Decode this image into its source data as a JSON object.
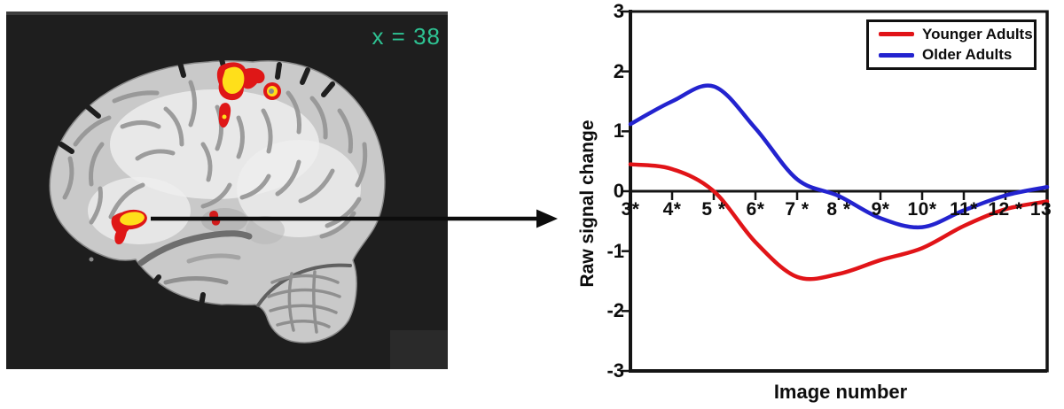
{
  "figure": {
    "background": "#ffffff"
  },
  "brain_panel": {
    "slice_label": "x = 38",
    "slice_label_color": "#2ec393",
    "background": "#1e1e1e",
    "activation": {
      "hot_color": "#df1717",
      "core_color": "#ffdf1a"
    }
  },
  "chart_data": {
    "type": "line",
    "title": "",
    "xlabel": "Image number",
    "ylabel": "Raw signal change",
    "x": [
      3,
      4,
      5,
      6,
      7,
      8,
      9,
      10,
      11,
      12,
      13
    ],
    "x_tick_labels": [
      "3*",
      "4*",
      "5 *",
      "6*",
      "7 *",
      "8 *",
      "9*",
      "10*",
      "11*",
      "12 *",
      "13"
    ],
    "y_ticks": [
      3,
      2,
      1,
      0,
      -1,
      -2,
      -3
    ],
    "ylim": [
      -3,
      3
    ],
    "xlim": [
      3,
      13
    ],
    "grid": false,
    "legend_position": "top-right",
    "series": [
      {
        "name": "Younger Adults",
        "color": "#e11418",
        "values": [
          0.45,
          0.37,
          0.0,
          -0.85,
          -1.43,
          -1.38,
          -1.15,
          -0.95,
          -0.58,
          -0.3,
          -0.17
        ]
      },
      {
        "name": "Older Adults",
        "color": "#2323cf",
        "values": [
          1.12,
          1.5,
          1.75,
          1.05,
          0.2,
          -0.08,
          -0.45,
          -0.6,
          -0.32,
          -0.07,
          0.07
        ]
      }
    ]
  }
}
